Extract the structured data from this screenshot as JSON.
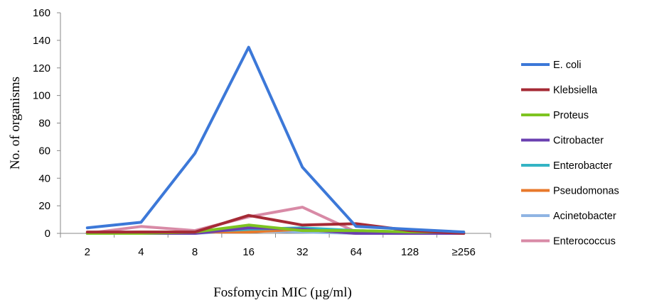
{
  "chart_data": {
    "type": "line",
    "title": "",
    "xlabel": "Fosfomycin MIC (µg/ml)",
    "ylabel": "No. of organisms",
    "categories": [
      "2",
      "4",
      "8",
      "16",
      "32",
      "64",
      "128",
      "≥256"
    ],
    "ylim": [
      0,
      160
    ],
    "yticks": [
      "0",
      "20",
      "40",
      "60",
      "80",
      "100",
      "120",
      "140",
      "160"
    ],
    "grid": false,
    "legend_position": "right",
    "series": [
      {
        "name": "E. coli",
        "color": "#3c78d8",
        "values": [
          4,
          8,
          58,
          135,
          48,
          5,
          3,
          1
        ]
      },
      {
        "name": "Klebsiella",
        "color": "#a52a35",
        "values": [
          1,
          1,
          1,
          13,
          6,
          7,
          2,
          0
        ]
      },
      {
        "name": "Proteus",
        "color": "#7ec421",
        "values": [
          0,
          0,
          1,
          6,
          2,
          2,
          1,
          1
        ]
      },
      {
        "name": "Citrobacter",
        "color": "#6a3fb0",
        "values": [
          0,
          0,
          0,
          4,
          3,
          0,
          0,
          0
        ]
      },
      {
        "name": "Enterobacter",
        "color": "#34b4c4",
        "values": [
          0,
          0,
          1,
          3,
          4,
          2,
          1,
          0
        ]
      },
      {
        "name": "Pseudomonas",
        "color": "#e8792b",
        "values": [
          0,
          1,
          1,
          1,
          3,
          0,
          0,
          0
        ]
      },
      {
        "name": "Acinetobacter",
        "color": "#8fb4e3",
        "values": [
          0,
          0,
          0,
          2,
          1,
          0,
          0,
          0
        ]
      },
      {
        "name": "Enterococcus",
        "color": "#d88aa6",
        "values": [
          0,
          5,
          2,
          12,
          19,
          1,
          0,
          0
        ]
      }
    ]
  }
}
